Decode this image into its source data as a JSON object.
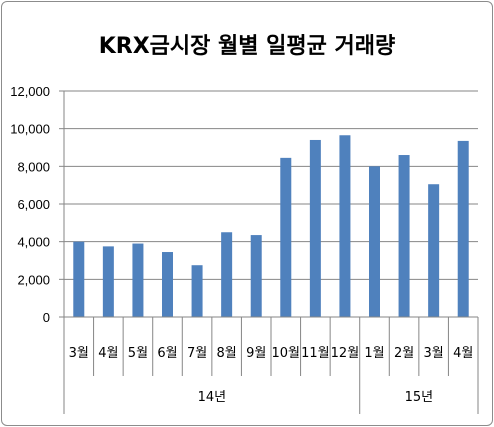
{
  "chart_data": {
    "type": "bar",
    "title": "KRX금시장 월별 일평균 거래량",
    "categories": [
      "3월",
      "4월",
      "5월",
      "6월",
      "7월",
      "8월",
      "9월",
      "10월",
      "11월",
      "12월",
      "1월",
      "2월",
      "3월",
      "4월"
    ],
    "groups": [
      {
        "label": "14년",
        "start": 0,
        "end": 9
      },
      {
        "label": "15년",
        "start": 10,
        "end": 13
      }
    ],
    "series": [
      {
        "values": [
          4000,
          3750,
          3900,
          3450,
          2750,
          4500,
          4350,
          8450,
          9400,
          9650,
          8000,
          8600,
          7050,
          9350
        ]
      }
    ],
    "ylim": [
      0,
      12000
    ],
    "yticks": [
      0,
      2000,
      4000,
      6000,
      8000,
      10000,
      12000
    ],
    "ytick_labels": [
      "0",
      "2,000",
      "4,000",
      "6,000",
      "8,000",
      "10,000",
      "12,000"
    ],
    "grid": true,
    "legend": "none",
    "bar_color": "#4f81bd",
    "grid_color": "#868686"
  }
}
